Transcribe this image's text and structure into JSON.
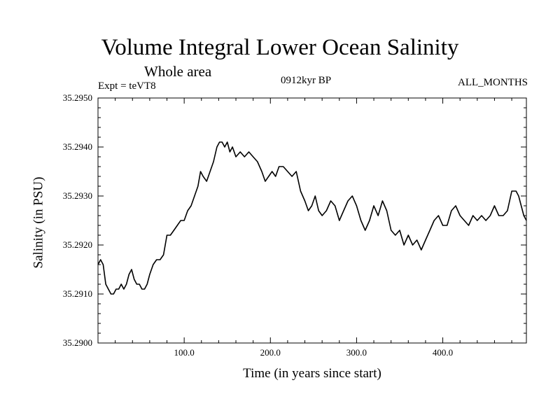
{
  "chart_data": {
    "type": "line",
    "title": "Volume Integral Lower Ocean Salinity",
    "subtitle": "Whole area",
    "experiment": "Expt = teVT8",
    "period": "0912kyr BP",
    "months": "ALL_MONTHS",
    "xlabel": "Time (in years since start)",
    "ylabel": "Salinity (in PSU)",
    "xlim": [
      0,
      497
    ],
    "ylim": [
      35.29,
      35.295
    ],
    "xticks": [
      100,
      200,
      300,
      400
    ],
    "xtick_labels": [
      "100.0",
      "200.0",
      "300.0",
      "400.0"
    ],
    "yticks": [
      35.29,
      35.291,
      35.292,
      35.293,
      35.294,
      35.295
    ],
    "ytick_labels": [
      "35.2900",
      "35.2910",
      "35.2920",
      "35.2930",
      "35.2940",
      "35.2950"
    ],
    "grid": false,
    "series": [
      {
        "name": "Salinity",
        "color": "#000000",
        "x": [
          0,
          3,
          6,
          9,
          12,
          15,
          18,
          21,
          24,
          27,
          30,
          33,
          36,
          39,
          42,
          45,
          48,
          51,
          54,
          57,
          60,
          64,
          68,
          72,
          76,
          80,
          84,
          88,
          92,
          96,
          100,
          104,
          108,
          112,
          116,
          119,
          122,
          126,
          130,
          134,
          138,
          141,
          144,
          147,
          150,
          153,
          156,
          160,
          165,
          170,
          175,
          180,
          185,
          190,
          194,
          198,
          202,
          206,
          210,
          215,
          220,
          225,
          230,
          235,
          240,
          244,
          248,
          252,
          256,
          260,
          265,
          270,
          275,
          280,
          285,
          290,
          295,
          300,
          305,
          310,
          315,
          320,
          325,
          330,
          335,
          340,
          345,
          350,
          355,
          360,
          365,
          370,
          375,
          380,
          385,
          390,
          395,
          400,
          405,
          410,
          415,
          420,
          425,
          430,
          435,
          440,
          445,
          450,
          455,
          460,
          465,
          470,
          475,
          480,
          485,
          488,
          491,
          494,
          497
        ],
        "y": [
          35.2916,
          35.2917,
          35.2916,
          35.2912,
          35.2911,
          35.291,
          35.291,
          35.2911,
          35.2911,
          35.2912,
          35.2911,
          35.2912,
          35.2914,
          35.2915,
          35.2913,
          35.2912,
          35.2912,
          35.2911,
          35.2911,
          35.2912,
          35.2914,
          35.2916,
          35.2917,
          35.2917,
          35.2918,
          35.2922,
          35.2922,
          35.2923,
          35.2924,
          35.2925,
          35.2925,
          35.2927,
          35.2928,
          35.293,
          35.2932,
          35.2935,
          35.2934,
          35.2933,
          35.2935,
          35.2937,
          35.294,
          35.2941,
          35.2941,
          35.294,
          35.2941,
          35.2939,
          35.294,
          35.2938,
          35.2939,
          35.2938,
          35.2939,
          35.2938,
          35.2937,
          35.2935,
          35.2933,
          35.2934,
          35.2935,
          35.2934,
          35.2936,
          35.2936,
          35.2935,
          35.2934,
          35.2935,
          35.2931,
          35.2929,
          35.2927,
          35.2928,
          35.293,
          35.2927,
          35.2926,
          35.2927,
          35.2929,
          35.2928,
          35.2925,
          35.2927,
          35.2929,
          35.293,
          35.2928,
          35.2925,
          35.2923,
          35.2925,
          35.2928,
          35.2926,
          35.2929,
          35.2927,
          35.2923,
          35.2922,
          35.2923,
          35.292,
          35.2922,
          35.292,
          35.2921,
          35.2919,
          35.2921,
          35.2923,
          35.2925,
          35.2926,
          35.2924,
          35.2924,
          35.2927,
          35.2928,
          35.2926,
          35.2925,
          35.2924,
          35.2926,
          35.2925,
          35.2926,
          35.2925,
          35.2926,
          35.2928,
          35.2926,
          35.2926,
          35.2927,
          35.2931,
          35.2931,
          35.293,
          35.2928,
          35.2926,
          35.2925
        ]
      }
    ]
  }
}
